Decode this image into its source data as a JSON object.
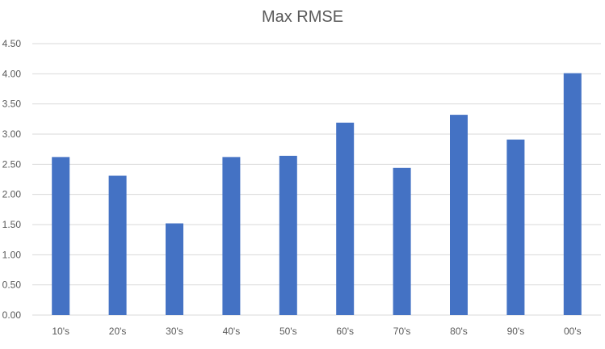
{
  "chart_data": {
    "type": "bar",
    "title": "Max RMSE",
    "xlabel": "",
    "ylabel": "",
    "categories": [
      "10's",
      "20's",
      "30's",
      "40's",
      "50's",
      "60's",
      "70's",
      "80's",
      "90's",
      "00's"
    ],
    "values": [
      2.62,
      2.31,
      1.52,
      2.62,
      2.64,
      3.19,
      2.44,
      3.32,
      2.91,
      4.01
    ],
    "ylim": [
      0,
      4.5
    ],
    "yticks": [
      "0.00",
      "0.50",
      "1.00",
      "1.50",
      "2.00",
      "2.50",
      "3.00",
      "3.50",
      "4.00",
      "4.50"
    ],
    "grid": true,
    "legend": "none",
    "bar_color": "#4472C4"
  }
}
